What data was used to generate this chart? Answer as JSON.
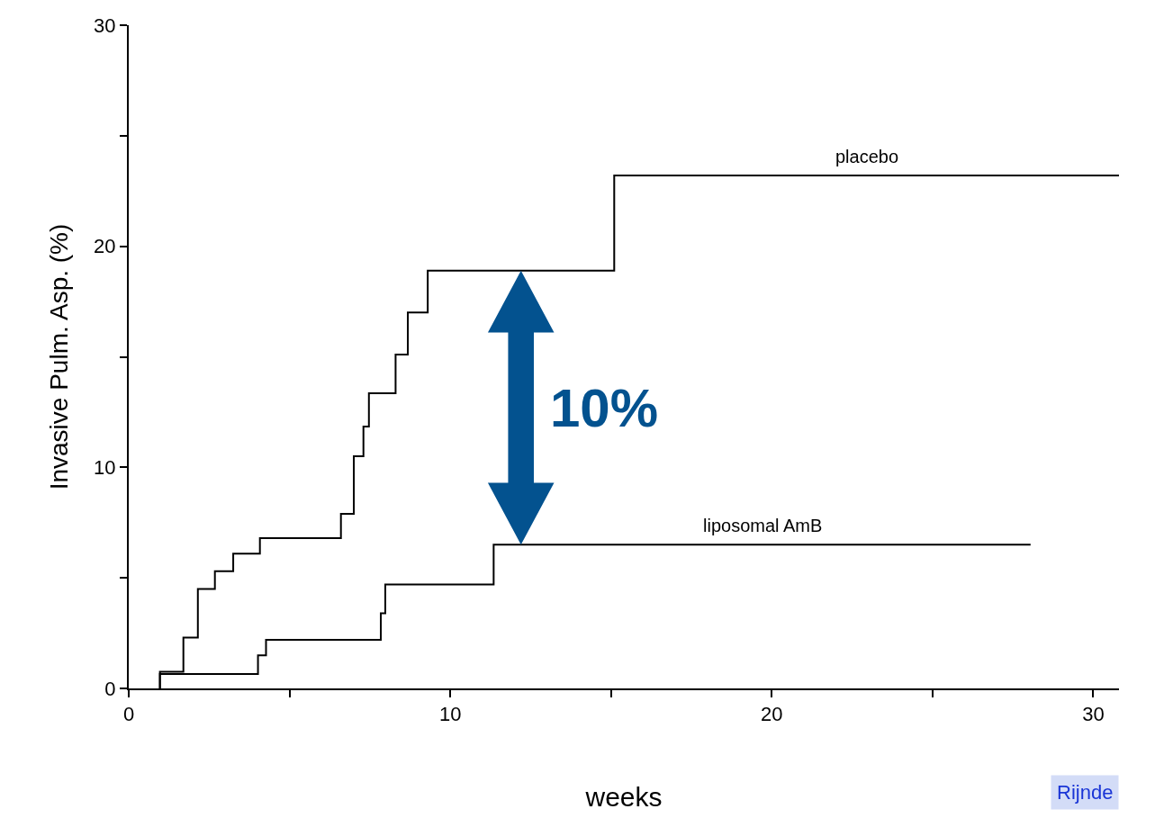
{
  "chart_data": {
    "type": "step",
    "xlabel": "weeks",
    "ylabel": "Invasive Pulm. Asp. (%)",
    "xlim": [
      0,
      30.8
    ],
    "ylim": [
      0,
      30
    ],
    "xticks": [
      0,
      {
        "value": 5,
        "label": null
      },
      10,
      {
        "value": 15,
        "label": null
      },
      20,
      {
        "value": 25,
        "label": null
      },
      30
    ],
    "yticks": [
      0,
      {
        "value": 5,
        "label": null
      },
      10,
      {
        "value": 15,
        "label": null
      },
      20,
      {
        "value": 25,
        "label": null
      },
      30
    ],
    "legend": false,
    "marker": "none",
    "line_style": "solid",
    "series": [
      {
        "name": "placebo",
        "color": "#000000",
        "x": [
          0.97,
          0.97,
          1.7,
          2.15,
          2.68,
          3.25,
          4.08,
          6.6,
          7.0,
          7.3,
          7.47,
          8.3,
          8.68,
          9.3,
          15.1,
          30.8
        ],
        "values": [
          0,
          0.75,
          2.3,
          4.5,
          5.3,
          6.1,
          6.8,
          7.9,
          10.5,
          11.85,
          13.35,
          15.1,
          17.0,
          18.9,
          23.2,
          23.2
        ]
      },
      {
        "name": "liposomal AmB",
        "color": "#000000",
        "x": [
          0.97,
          0.97,
          4.02,
          4.27,
          7.84,
          7.98,
          11.35,
          28.05
        ],
        "values": [
          0,
          0.65,
          1.5,
          2.2,
          3.4,
          4.7,
          6.5,
          6.5
        ]
      }
    ],
    "annotations": [
      "10%",
      "Rijnde"
    ]
  }
}
